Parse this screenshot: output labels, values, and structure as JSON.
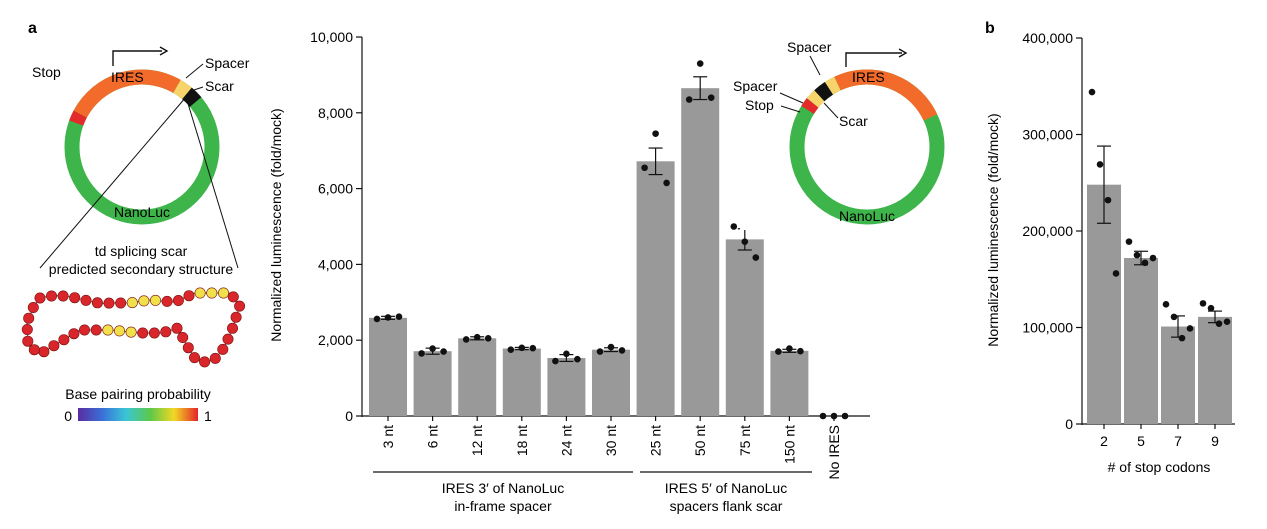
{
  "panel_a": {
    "label": "a",
    "plasmid_left": {
      "stop": "Stop",
      "ires": "IRES",
      "spacer": "Spacer",
      "scar": "Scar",
      "nanoluc": "NanoLuc"
    },
    "structure_title_1": "td splicing scar",
    "structure_title_2": "predicted secondary structure",
    "base_pairing": {
      "title": "Base pairing probability",
      "min_label": "0",
      "max_label": "1"
    },
    "plasmid_inset": {
      "spacer_top": "Spacer",
      "ires": "IRES",
      "spacer_left": "Spacer",
      "stop": "Stop",
      "scar": "Scar",
      "nanoluc": "NanoLuc"
    },
    "group_labels": [
      {
        "line1": "IRES 3′ of NanoLuc",
        "line2": "in-frame spacer"
      },
      {
        "line1": "IRES 5′ of NanoLuc",
        "line2": "spacers flank scar"
      }
    ]
  },
  "panel_b": {
    "label": "b"
  },
  "colors": {
    "bar": "#999999",
    "ring": "#3db54a",
    "ires": "#f26b2a",
    "stop": "#e32b2b",
    "spacer": "#f7d36b",
    "scar": "#111111"
  },
  "chart_data": [
    {
      "type": "bar",
      "ylabel": "Normalized luminescence (fold/mock)",
      "ylim": [
        0,
        10000
      ],
      "yticks": [
        "0",
        "2,000",
        "4,000",
        "6,000",
        "8,000",
        "10,000"
      ],
      "categories": [
        "3 nt",
        "6 nt",
        "12 nt",
        "18 nt",
        "24 nt",
        "30 nt",
        "25 nt",
        "50 nt",
        "75 nt",
        "150 nt",
        "No IRES"
      ],
      "values": [
        2590,
        1710,
        2050,
        1780,
        1530,
        1750,
        6720,
        8650,
        4660,
        1720,
        0
      ],
      "errors": [
        40,
        80,
        40,
        30,
        90,
        50,
        350,
        300,
        280,
        40,
        0
      ],
      "points": [
        [
          2560,
          2600,
          2620
        ],
        [
          1650,
          1780,
          1700
        ],
        [
          2020,
          2080,
          2050
        ],
        [
          1750,
          1800,
          1790
        ],
        [
          1450,
          1640,
          1500
        ],
        [
          1700,
          1820,
          1730
        ],
        [
          6550,
          7450,
          6150
        ],
        [
          8350,
          9300,
          8400
        ],
        [
          5000,
          4600,
          4180
        ],
        [
          1700,
          1780,
          1710
        ],
        [
          0,
          0,
          0
        ]
      ],
      "grid": false
    },
    {
      "type": "bar",
      "ylabel": "Normalized luminescence (fold/mock)",
      "xlabel": "# of stop codons",
      "ylim": [
        0,
        400000
      ],
      "yticks": [
        "0",
        "100,000",
        "200,000",
        "300,000",
        "400,000"
      ],
      "categories": [
        "2",
        "5",
        "7",
        "9"
      ],
      "values": [
        248000,
        172000,
        101000,
        111000
      ],
      "errors": [
        40000,
        7000,
        11000,
        6000
      ],
      "points": [
        [
          344000,
          269000,
          232000,
          156000
        ],
        [
          189000,
          175000,
          167000,
          172000
        ],
        [
          124000,
          111000,
          89000,
          99000
        ],
        [
          125000,
          120000,
          104000,
          106000
        ]
      ],
      "grid": false
    }
  ]
}
